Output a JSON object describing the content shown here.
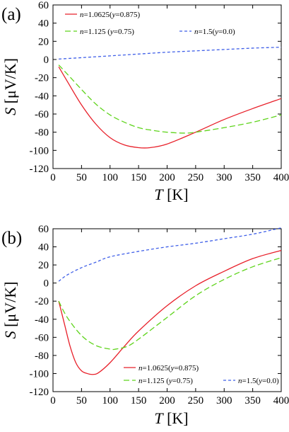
{
  "chart_data": [
    {
      "type": "line",
      "panel_label": "(a)",
      "xlabel_var": "T",
      "xlabel_unit": " [K]",
      "ylabel_var": "S",
      "ylabel_unit": " [μV/K]",
      "xlim": [
        0,
        400
      ],
      "ylim": [
        -120,
        60
      ],
      "xticks": [
        0,
        50,
        100,
        150,
        200,
        250,
        300,
        350,
        400
      ],
      "yticks": [
        -120,
        -100,
        -80,
        -60,
        -40,
        -20,
        0,
        20,
        40,
        60
      ],
      "grid": false,
      "legend_position": "top-left",
      "series": [
        {
          "name": "n=1.0625(y=0.875)",
          "legend_parts": [
            "n",
            "=1.0625(",
            "y",
            "=0.875)"
          ],
          "color": "#e8202a",
          "dash": "solid",
          "points": [
            [
              10,
              -8
            ],
            [
              25,
              -24
            ],
            [
              50,
              -50
            ],
            [
              75,
              -71
            ],
            [
              100,
              -86
            ],
            [
              125,
              -94
            ],
            [
              150,
              -97
            ],
            [
              170,
              -97
            ],
            [
              200,
              -93
            ],
            [
              250,
              -80
            ],
            [
              300,
              -66
            ],
            [
              350,
              -54
            ],
            [
              400,
              -43
            ]
          ]
        },
        {
          "name": "n=1.125 (y=0.75)",
          "legend_parts": [
            "n",
            "=1.125 (",
            "y",
            "=0.75)"
          ],
          "color": "#5fd41c",
          "dash": "dashed",
          "points": [
            [
              10,
              -6
            ],
            [
              25,
              -16
            ],
            [
              50,
              -33
            ],
            [
              75,
              -49
            ],
            [
              100,
              -61
            ],
            [
              125,
              -69
            ],
            [
              150,
              -75
            ],
            [
              175,
              -78
            ],
            [
              200,
              -80
            ],
            [
              230,
              -81
            ],
            [
              250,
              -80
            ],
            [
              300,
              -75
            ],
            [
              350,
              -69
            ],
            [
              400,
              -61
            ]
          ]
        },
        {
          "name": "n=1.5(y=0.0)",
          "legend_parts": [
            "n",
            "=1.5(",
            "y",
            "=0.0)"
          ],
          "color": "#3f5fe8",
          "dash": "dotted",
          "points": [
            [
              10,
              0.5
            ],
            [
              50,
              2
            ],
            [
              100,
              4
            ],
            [
              150,
              6
            ],
            [
              200,
              8
            ],
            [
              250,
              9.5
            ],
            [
              300,
              11
            ],
            [
              350,
              12.5
            ],
            [
              400,
              13.5
            ]
          ]
        }
      ]
    },
    {
      "type": "line",
      "panel_label": "(b)",
      "xlabel_var": "T",
      "xlabel_unit": " [K]",
      "ylabel_var": "S",
      "ylabel_unit": " [μV/K]",
      "xlim": [
        0,
        400
      ],
      "ylim": [
        -120,
        60
      ],
      "xticks": [
        0,
        50,
        100,
        150,
        200,
        250,
        300,
        350,
        400
      ],
      "yticks": [
        -120,
        -100,
        -80,
        -60,
        -40,
        -20,
        0,
        20,
        40,
        60
      ],
      "grid": false,
      "legend_position": "bottom-right",
      "series": [
        {
          "name": "n=1.0625(y=0.875)",
          "legend_parts": [
            "n",
            "=1.0625(",
            "y",
            "=0.875)"
          ],
          "color": "#e8202a",
          "dash": "solid",
          "points": [
            [
              10,
              -20
            ],
            [
              20,
              -45
            ],
            [
              30,
              -70
            ],
            [
              40,
              -88
            ],
            [
              50,
              -97
            ],
            [
              60,
              -100
            ],
            [
              70,
              -101
            ],
            [
              80,
              -99
            ],
            [
              100,
              -88
            ],
            [
              125,
              -70
            ],
            [
              150,
              -53
            ],
            [
              200,
              -25
            ],
            [
              250,
              -3
            ],
            [
              300,
              13
            ],
            [
              350,
              27
            ],
            [
              400,
              36
            ]
          ]
        },
        {
          "name": "n=1.125 (y=0.75)",
          "legend_parts": [
            "n",
            "=1.125 (",
            "y",
            "=0.75)"
          ],
          "color": "#5fd41c",
          "dash": "dashed",
          "points": [
            [
              10,
              -20
            ],
            [
              25,
              -38
            ],
            [
              50,
              -58
            ],
            [
              75,
              -69
            ],
            [
              100,
              -73
            ],
            [
              110,
              -73
            ],
            [
              130,
              -70
            ],
            [
              150,
              -62
            ],
            [
              200,
              -38
            ],
            [
              250,
              -14
            ],
            [
              300,
              4
            ],
            [
              350,
              18
            ],
            [
              400,
              28
            ]
          ]
        },
        {
          "name": "n=1.5(y=0.0)",
          "legend_parts": [
            "n",
            "=1.5(",
            "y",
            "=0.0)"
          ],
          "color": "#3f5fe8",
          "dash": "dotted",
          "points": [
            [
              10,
              2
            ],
            [
              25,
              9
            ],
            [
              50,
              17
            ],
            [
              75,
              23
            ],
            [
              100,
              29
            ],
            [
              150,
              35
            ],
            [
              200,
              40
            ],
            [
              250,
              44
            ],
            [
              300,
              49
            ],
            [
              350,
              54
            ],
            [
              400,
              61
            ]
          ]
        }
      ]
    }
  ]
}
